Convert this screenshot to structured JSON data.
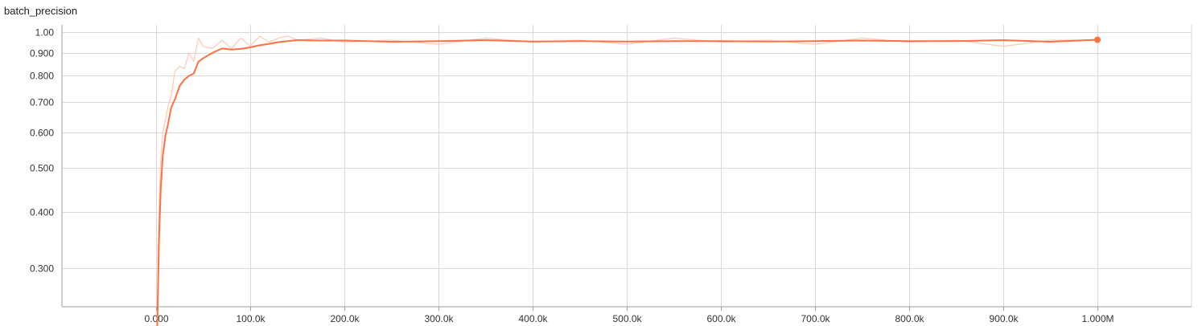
{
  "chart_data": {
    "type": "line",
    "title": "batch_precision",
    "xlabel": "",
    "ylabel": "",
    "xlim": [
      0,
      1000000
    ],
    "ylim": [
      0.2,
      1.02
    ],
    "y_scale": "log",
    "grid": true,
    "x_ticks": [
      {
        "value": 0,
        "label": "0.000"
      },
      {
        "value": 100000,
        "label": "100.0k"
      },
      {
        "value": 200000,
        "label": "200.0k"
      },
      {
        "value": 300000,
        "label": "300.0k"
      },
      {
        "value": 400000,
        "label": "400.0k"
      },
      {
        "value": 500000,
        "label": "500.0k"
      },
      {
        "value": 600000,
        "label": "600.0k"
      },
      {
        "value": 700000,
        "label": "700.0k"
      },
      {
        "value": 800000,
        "label": "800.0k"
      },
      {
        "value": 900000,
        "label": "900.0k"
      },
      {
        "value": 1000000,
        "label": "1.000M"
      }
    ],
    "y_ticks": [
      {
        "value": 1.0,
        "label": "1.00"
      },
      {
        "value": 0.9,
        "label": "0.900"
      },
      {
        "value": 0.8,
        "label": "0.800"
      },
      {
        "value": 0.7,
        "label": "0.700"
      },
      {
        "value": 0.6,
        "label": "0.600"
      },
      {
        "value": 0.5,
        "label": "0.500"
      },
      {
        "value": 0.4,
        "label": "0.400"
      },
      {
        "value": 0.3,
        "label": "0.300"
      }
    ],
    "series": [
      {
        "color": "#ff7043",
        "raw_color": "#ffccbc",
        "x": [
          1000,
          3000,
          5000,
          7000,
          10000,
          13000,
          16000,
          20000,
          25000,
          30000,
          35000,
          40000,
          45000,
          50000,
          60000,
          70000,
          80000,
          90000,
          100000,
          110000,
          120000,
          130000,
          140000,
          150000,
          175000,
          200000,
          250000,
          300000,
          350000,
          400000,
          450000,
          500000,
          550000,
          600000,
          650000,
          700000,
          750000,
          800000,
          850000,
          900000,
          950000,
          1000000
        ],
        "smoothed": [
          0.21,
          0.34,
          0.45,
          0.53,
          0.59,
          0.63,
          0.68,
          0.71,
          0.76,
          0.785,
          0.8,
          0.81,
          0.86,
          0.875,
          0.9,
          0.92,
          0.915,
          0.918,
          0.925,
          0.935,
          0.942,
          0.95,
          0.955,
          0.96,
          0.958,
          0.958,
          0.952,
          0.955,
          0.96,
          0.953,
          0.955,
          0.953,
          0.955,
          0.955,
          0.953,
          0.955,
          0.958,
          0.955,
          0.955,
          0.96,
          0.952,
          0.962
        ],
        "raw": [
          0.22,
          0.4,
          0.52,
          0.6,
          0.64,
          0.69,
          0.72,
          0.82,
          0.84,
          0.83,
          0.9,
          0.86,
          0.97,
          0.93,
          0.92,
          0.96,
          0.92,
          0.97,
          0.93,
          0.98,
          0.95,
          0.97,
          0.98,
          0.96,
          0.97,
          0.95,
          0.96,
          0.94,
          0.97,
          0.95,
          0.96,
          0.94,
          0.97,
          0.95,
          0.96,
          0.94,
          0.97,
          0.95,
          0.96,
          0.93,
          0.96,
          0.96
        ]
      }
    ]
  }
}
